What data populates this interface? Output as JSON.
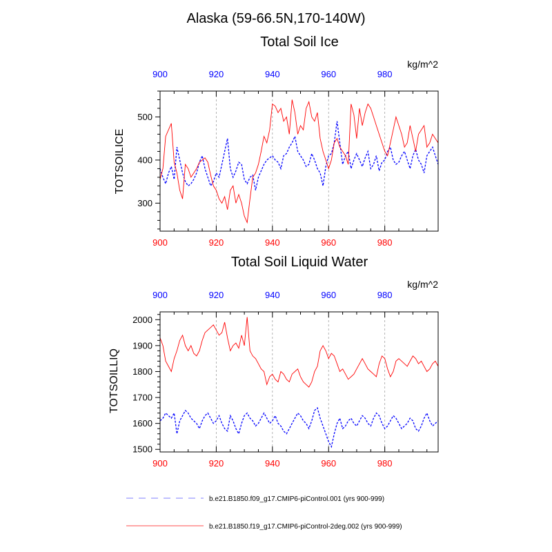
{
  "figure": {
    "main_title": "Alaska (59-66.5N,170-140W)"
  },
  "colors": {
    "series1": "#0000ff",
    "series2": "#ff0000",
    "axis": "#000000",
    "grid": "#a0a0a0"
  },
  "legend": {
    "items": [
      "b.e21.B1850.f09_g17.CMIP6-piControl.001 (yrs 900-999)",
      "b.e21.B1850.f19_g17.CMIP6-piControl-2deg.002 (yrs 900-999)"
    ]
  },
  "chart_data": [
    {
      "type": "line",
      "title": "Total Soil Ice",
      "units": "kg/m^2",
      "ylabel": "TOTSOILICE",
      "xlabel": "",
      "xlim": [
        900,
        999
      ],
      "ylim": [
        235,
        560
      ],
      "xticks": [
        900,
        920,
        940,
        960,
        980
      ],
      "xticklabels": [
        "900",
        "920",
        "940",
        "960",
        "980"
      ],
      "yticks": [
        300,
        400,
        500
      ],
      "yticklabels": [
        "300",
        "400",
        "500"
      ],
      "x_start": 900,
      "x_step": 1,
      "grid": "vertical dashed at major x ticks",
      "series": [
        {
          "name": "b.e21.B1850.f09_g17.CMIP6-piControl.001 (yrs 900-999)",
          "color": "#0000ff",
          "style": "dashed",
          "values": [
            380,
            360,
            345,
            370,
            385,
            355,
            430,
            400,
            370,
            350,
            340,
            345,
            355,
            370,
            395,
            410,
            380,
            360,
            340,
            350,
            370,
            360,
            390,
            420,
            450,
            380,
            360,
            375,
            395,
            390,
            355,
            345,
            360,
            365,
            330,
            360,
            375,
            390,
            400,
            405,
            410,
            400,
            395,
            380,
            410,
            415,
            430,
            440,
            455,
            420,
            410,
            400,
            385,
            390,
            415,
            400,
            380,
            370,
            340,
            385,
            410,
            415,
            440,
            490,
            440,
            390,
            410,
            420,
            380,
            400,
            415,
            400,
            385,
            405,
            420,
            380,
            390,
            410,
            375,
            395,
            400,
            420,
            430,
            400,
            390,
            395,
            410,
            420,
            400,
            380,
            410,
            425,
            400,
            390,
            370,
            410,
            420,
            430,
            410,
            390
          ]
        },
        {
          "name": "b.e21.B1850.f19_g17.CMIP6-piControl-2deg.002 (yrs 900-999)",
          "color": "#ff0000",
          "style": "solid",
          "values": [
            355,
            380,
            455,
            470,
            485,
            395,
            370,
            330,
            310,
            390,
            380,
            360,
            370,
            380,
            395,
            400,
            405,
            395,
            365,
            340,
            330,
            310,
            300,
            315,
            285,
            330,
            340,
            300,
            320,
            300,
            270,
            255,
            310,
            360,
            370,
            390,
            420,
            455,
            440,
            470,
            530,
            525,
            510,
            520,
            490,
            500,
            460,
            540,
            510,
            460,
            480,
            470,
            520,
            535,
            500,
            490,
            510,
            450,
            420,
            400,
            380,
            400,
            440,
            450,
            430,
            420,
            410,
            390,
            530,
            505,
            450,
            520,
            480,
            510,
            530,
            520,
            500,
            480,
            460,
            440,
            420,
            410,
            440,
            470,
            500,
            480,
            460,
            430,
            440,
            480,
            450,
            420,
            460,
            470,
            480,
            430,
            440,
            460,
            450,
            440
          ]
        }
      ]
    },
    {
      "type": "line",
      "title": "Total Soil Liquid Water",
      "units": "kg/m^2",
      "ylabel": "TOTSOILLIQ",
      "xlabel": "",
      "xlim": [
        900,
        999
      ],
      "ylim": [
        1490,
        2030
      ],
      "xticks": [
        900,
        920,
        940,
        960,
        980
      ],
      "xticklabels": [
        "900",
        "920",
        "940",
        "960",
        "980"
      ],
      "yticks": [
        1500,
        1600,
        1700,
        1800,
        1900,
        2000
      ],
      "yticklabels": [
        "1500",
        "1600",
        "1700",
        "1800",
        "1900",
        "2000"
      ],
      "x_start": 900,
      "x_step": 1,
      "grid": "vertical dashed at major x ticks",
      "series": [
        {
          "name": "b.e21.B1850.f09_g17.CMIP6-piControl.001 (yrs 900-999)",
          "color": "#0000ff",
          "style": "dashed",
          "values": [
            1610,
            1620,
            1640,
            1630,
            1620,
            1640,
            1560,
            1610,
            1630,
            1650,
            1640,
            1620,
            1610,
            1600,
            1580,
            1610,
            1630,
            1640,
            1620,
            1600,
            1610,
            1630,
            1600,
            1580,
            1570,
            1630,
            1610,
            1580,
            1560,
            1600,
            1630,
            1640,
            1620,
            1610,
            1590,
            1600,
            1620,
            1640,
            1620,
            1600,
            1610,
            1630,
            1600,
            1590,
            1570,
            1560,
            1580,
            1600,
            1620,
            1640,
            1630,
            1610,
            1600,
            1580,
            1610,
            1650,
            1660,
            1620,
            1590,
            1560,
            1530,
            1510,
            1560,
            1600,
            1620,
            1580,
            1590,
            1610,
            1620,
            1600,
            1590,
            1610,
            1630,
            1620,
            1600,
            1590,
            1620,
            1640,
            1630,
            1600,
            1580,
            1590,
            1610,
            1630,
            1620,
            1600,
            1580,
            1590,
            1600,
            1620,
            1610,
            1580,
            1570,
            1590,
            1620,
            1640,
            1610,
            1590,
            1600,
            1610
          ]
        },
        {
          "name": "b.e21.B1850.f19_g17.CMIP6-piControl-2deg.002 (yrs 900-999)",
          "color": "#ff0000",
          "style": "solid",
          "values": [
            1930,
            1900,
            1840,
            1820,
            1800,
            1850,
            1880,
            1920,
            1940,
            1900,
            1880,
            1900,
            1870,
            1860,
            1880,
            1920,
            1950,
            1960,
            1970,
            1980,
            1960,
            1940,
            1950,
            1990,
            1930,
            1880,
            1900,
            1910,
            1890,
            1940,
            1900,
            2010,
            1880,
            1860,
            1850,
            1830,
            1810,
            1800,
            1750,
            1780,
            1790,
            1770,
            1760,
            1800,
            1790,
            1770,
            1760,
            1790,
            1800,
            1810,
            1780,
            1760,
            1750,
            1740,
            1760,
            1800,
            1820,
            1880,
            1900,
            1880,
            1850,
            1870,
            1860,
            1830,
            1800,
            1810,
            1790,
            1770,
            1780,
            1790,
            1810,
            1830,
            1850,
            1830,
            1810,
            1800,
            1790,
            1780,
            1830,
            1860,
            1850,
            1810,
            1780,
            1800,
            1840,
            1850,
            1840,
            1830,
            1820,
            1840,
            1860,
            1850,
            1830,
            1840,
            1820,
            1800,
            1810,
            1830,
            1840,
            1820
          ]
        }
      ]
    }
  ]
}
